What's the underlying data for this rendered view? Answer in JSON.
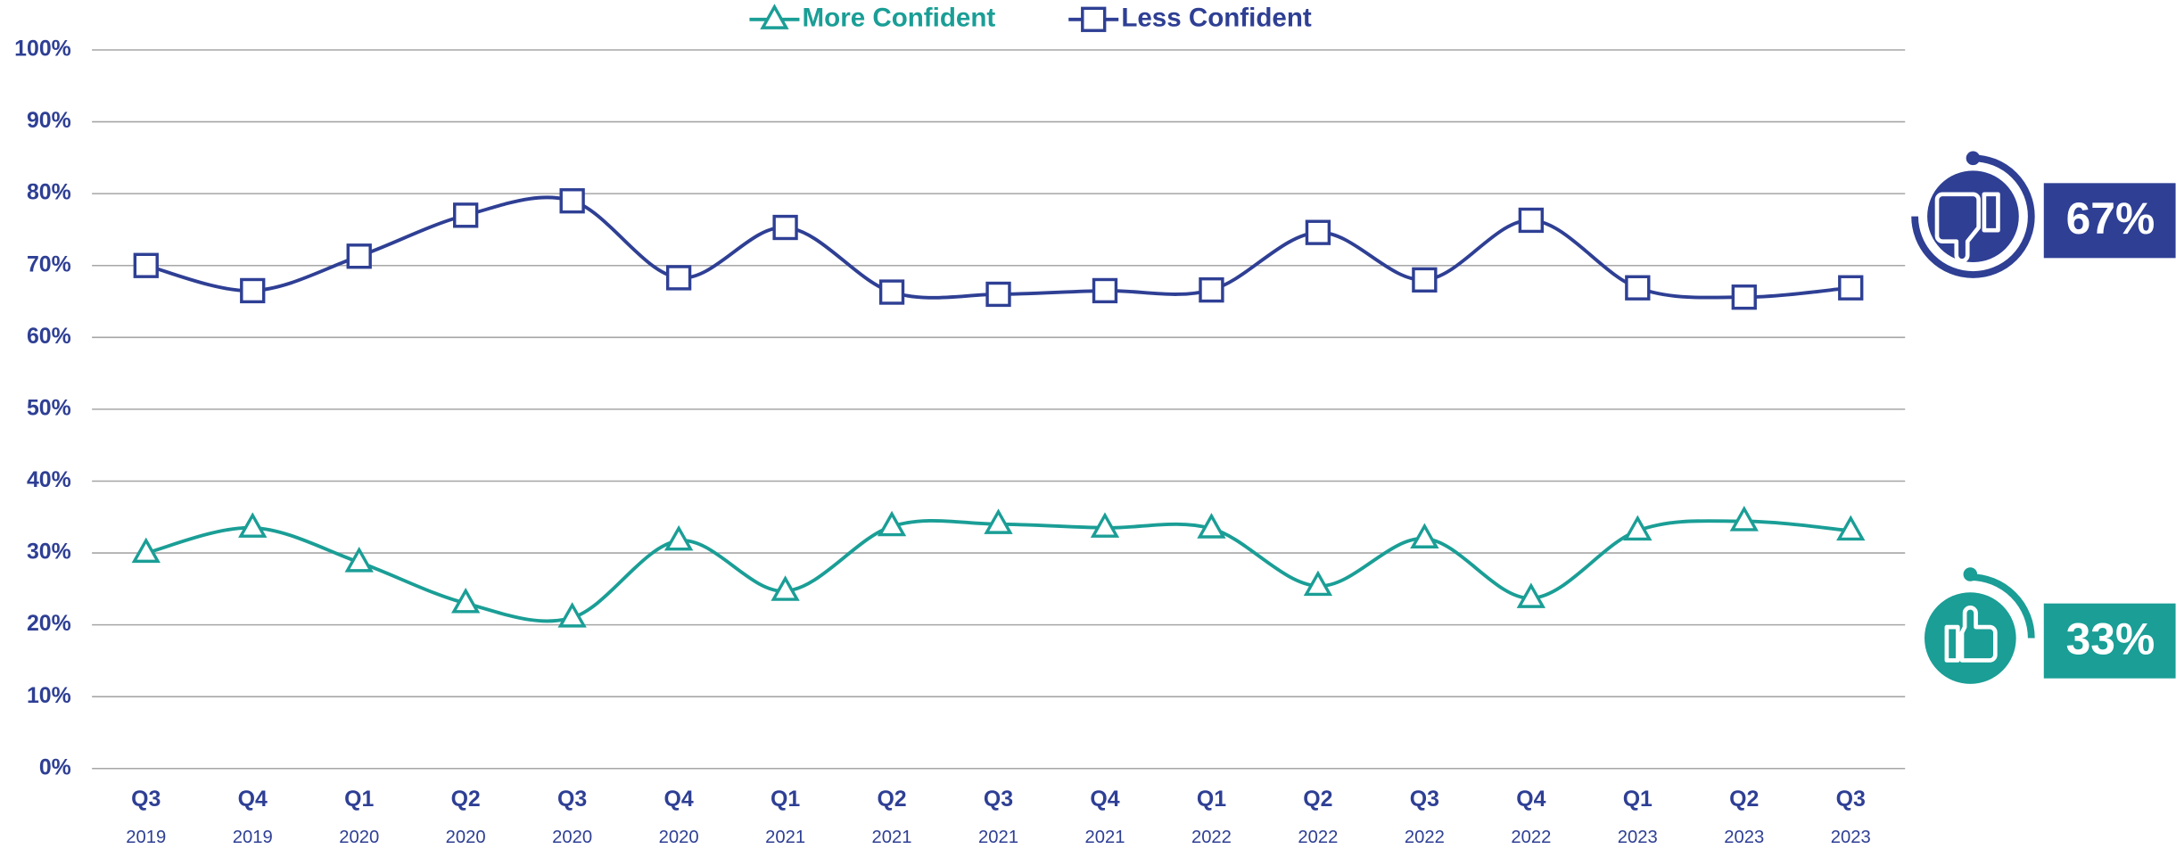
{
  "chart_data": {
    "type": "line",
    "categories": [
      [
        "Q3",
        "2019"
      ],
      [
        "Q4",
        "2019"
      ],
      [
        "Q1",
        "2020"
      ],
      [
        "Q2",
        "2020"
      ],
      [
        "Q3",
        "2020"
      ],
      [
        "Q4",
        "2020"
      ],
      [
        "Q1",
        "2021"
      ],
      [
        "Q2",
        "2021"
      ],
      [
        "Q3",
        "2021"
      ],
      [
        "Q4",
        "2021"
      ],
      [
        "Q1",
        "2022"
      ],
      [
        "Q2",
        "2022"
      ],
      [
        "Q3",
        "2022"
      ],
      [
        "Q4",
        "2022"
      ],
      [
        "Q1",
        "2023"
      ],
      [
        "Q2",
        "2023"
      ],
      [
        "Q3",
        "2023"
      ]
    ],
    "series": [
      {
        "name": "More Confident",
        "color": "#1a9e96",
        "marker": "triangle",
        "values": [
          30,
          33.5,
          28.7,
          23,
          21,
          31.7,
          24.7,
          33.7,
          34,
          33.5,
          33.4,
          25.4,
          32,
          23.7,
          33.1,
          34.4,
          33.1
        ]
      },
      {
        "name": "Less Confident",
        "color": "#2e3f94",
        "marker": "square",
        "values": [
          70,
          66.5,
          71.3,
          77,
          79,
          68.3,
          75.3,
          66.3,
          66,
          66.5,
          66.6,
          74.6,
          68,
          76.3,
          66.9,
          65.6,
          66.9
        ]
      }
    ],
    "ylim": [
      0,
      100
    ],
    "yticks": [
      {
        "value": 0,
        "label": "0%"
      },
      {
        "value": 10,
        "label": "10%"
      },
      {
        "value": 20,
        "label": "20%"
      },
      {
        "value": 30,
        "label": "30%"
      },
      {
        "value": 40,
        "label": "40%"
      },
      {
        "value": 50,
        "label": "50%"
      },
      {
        "value": 60,
        "label": "60%"
      },
      {
        "value": 70,
        "label": "70%"
      },
      {
        "value": 80,
        "label": "80%"
      },
      {
        "value": 90,
        "label": "90%"
      },
      {
        "value": 100,
        "label": "100%"
      }
    ],
    "grid": true,
    "legend": "top",
    "callouts": [
      {
        "text": "67%",
        "color": "#2e3f94"
      },
      {
        "text": "33%",
        "color": "#1a9e96"
      }
    ]
  }
}
